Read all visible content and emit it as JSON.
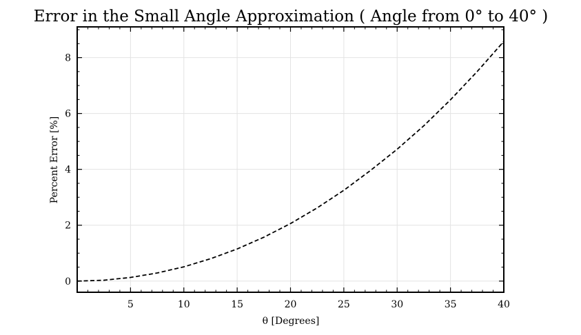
{
  "chart_data": {
    "type": "line",
    "title": "Error in the Small Angle Approximation ( Angle from 0° to 40° )",
    "xlabel": "θ [Degrees]",
    "ylabel": "Percent Error [%]",
    "xlim": [
      0,
      40
    ],
    "ylim": [
      -0.4,
      9.1
    ],
    "xticks": [
      5,
      10,
      15,
      20,
      25,
      30,
      35,
      40
    ],
    "yticks": [
      0,
      2,
      4,
      6,
      8
    ],
    "grid": true,
    "series": [
      {
        "color": "#000000",
        "line_style": "dashed",
        "x": [
          0,
          2.5,
          5,
          7.5,
          10,
          12.5,
          15,
          17.5,
          20,
          22.5,
          25,
          27.5,
          30,
          32.5,
          35,
          37.5,
          40
        ],
        "y": [
          0,
          0.03,
          0.13,
          0.29,
          0.51,
          0.8,
          1.15,
          1.57,
          2.06,
          2.62,
          3.25,
          3.96,
          4.72,
          5.56,
          6.49,
          7.5,
          8.58
        ]
      }
    ]
  }
}
